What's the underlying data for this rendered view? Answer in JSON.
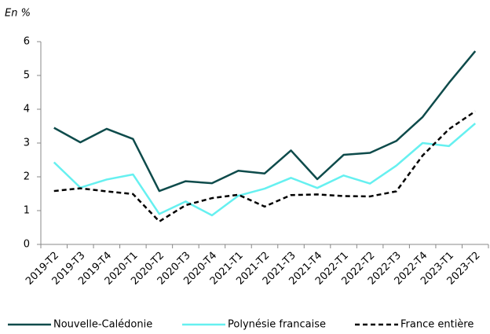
{
  "chart_data": {
    "type": "line",
    "y_label": "En %",
    "categories": [
      "2019-T2",
      "2019-T3",
      "2019-T4",
      "2020-T1",
      "2020-T2",
      "2020-T3",
      "2020-T4",
      "2021-T1",
      "2021-T2",
      "2021-T3",
      "2021-T4",
      "2022-T1",
      "2022-T2",
      "2022-T3",
      "2022-T4",
      "2023-T1",
      "2023-T2"
    ],
    "series": [
      {
        "name": "Nouvelle-Calédonie",
        "color": "#0e4b4b",
        "dash": false,
        "values": [
          3.45,
          3.02,
          3.42,
          3.12,
          1.58,
          1.87,
          1.81,
          2.18,
          2.1,
          2.78,
          1.93,
          2.65,
          2.71,
          3.06,
          3.77,
          4.78,
          5.72
        ]
      },
      {
        "name": "Polynésie francaise",
        "color": "#66f0f0",
        "dash": false,
        "values": [
          2.43,
          1.68,
          1.92,
          2.07,
          0.9,
          1.27,
          0.86,
          1.44,
          1.65,
          1.97,
          1.67,
          2.04,
          1.8,
          2.33,
          3.0,
          2.91,
          3.58
        ]
      },
      {
        "name": "France entière",
        "color": "#000000",
        "dash": true,
        "values": [
          1.58,
          1.66,
          1.57,
          1.49,
          0.68,
          1.16,
          1.37,
          1.47,
          1.12,
          1.46,
          1.48,
          1.43,
          1.42,
          1.57,
          2.63,
          3.41,
          3.94
        ]
      }
    ],
    "ylim": [
      0,
      6
    ],
    "yticks": [
      0,
      1,
      2,
      3,
      4,
      5,
      6
    ],
    "grid": false
  }
}
